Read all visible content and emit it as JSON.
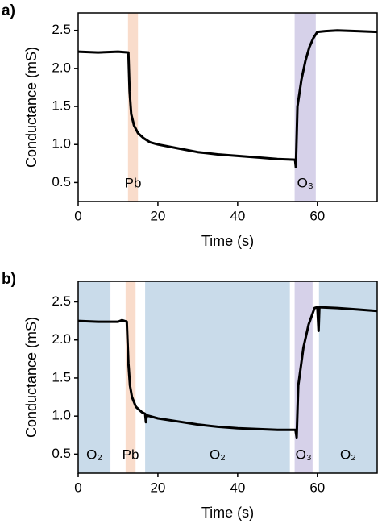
{
  "chart_data": [
    {
      "type": "line",
      "panel": "a)",
      "xlabel": "Time (s)",
      "ylabel": "Conductance (mS)",
      "color": "#000000",
      "xlim": [
        0,
        75
      ],
      "ylim": [
        0.25,
        2.73
      ],
      "xticks": [
        0,
        20,
        40,
        60
      ],
      "yticks": [
        0.5,
        {
          "value": 1,
          "label": "1.0"
        },
        1.5,
        {
          "value": 2,
          "label": "2.0"
        },
        2.5
      ],
      "regions": [
        {
          "label": "Pb",
          "start": 12.5,
          "end": 15,
          "color": "#f9dccb"
        },
        {
          "label": "O₃",
          "start": 54.3,
          "end": 59.6,
          "color": "#d6d1e9"
        }
      ],
      "x": [
        0,
        5,
        10,
        12.6,
        12.9,
        13.3,
        14,
        15,
        16.5,
        18,
        20,
        25,
        30,
        35,
        40,
        45,
        50,
        54.4,
        54.6,
        55,
        56,
        57,
        58,
        59,
        60,
        62,
        65,
        70,
        75
      ],
      "values": [
        2.22,
        2.21,
        2.22,
        2.21,
        1.7,
        1.4,
        1.25,
        1.15,
        1.08,
        1.03,
        1.0,
        0.95,
        0.9,
        0.87,
        0.85,
        0.83,
        0.81,
        0.8,
        0.7,
        1.5,
        1.85,
        2.1,
        2.28,
        2.4,
        2.48,
        2.49,
        2.5,
        2.49,
        2.48
      ]
    },
    {
      "type": "line",
      "panel": "b)",
      "xlabel": "Time (s)",
      "ylabel": "Conductance (mS)",
      "color": "#000000",
      "xlim": [
        0,
        75
      ],
      "ylim": [
        0.25,
        2.77
      ],
      "xticks": [
        0,
        20,
        40,
        60
      ],
      "yticks": [
        0.5,
        {
          "value": 1,
          "label": "1.0"
        },
        1.5,
        {
          "value": 2,
          "label": "2.0"
        },
        2.5
      ],
      "regions": [
        {
          "label": "O₂",
          "start": 0,
          "end": 8.1,
          "color": "#c9dbea"
        },
        {
          "label": "Pb",
          "start": 11.9,
          "end": 14.4,
          "color": "#f9dccb"
        },
        {
          "label": "O₂",
          "start": 16.8,
          "end": 53.1,
          "color": "#c9dbea"
        },
        {
          "label": "O₃",
          "start": 54.3,
          "end": 58.8,
          "color": "#d6d1e9"
        },
        {
          "label": "O₂",
          "start": 60.4,
          "end": 75,
          "color": "#c9dbea"
        }
      ],
      "x": [
        0,
        5,
        10,
        11,
        12.2,
        12.6,
        13,
        13.5,
        14.5,
        16,
        16.8,
        17,
        17.2,
        20,
        25,
        30,
        35,
        40,
        45,
        50,
        54.5,
        54.8,
        55.2,
        56.5,
        57.8,
        59.3,
        60,
        60.3,
        60.5,
        65,
        70,
        75
      ],
      "values": [
        2.25,
        2.24,
        2.24,
        2.26,
        2.24,
        1.7,
        1.4,
        1.25,
        1.12,
        1.05,
        1.03,
        0.92,
        1.01,
        0.97,
        0.93,
        0.89,
        0.86,
        0.84,
        0.83,
        0.82,
        0.82,
        0.72,
        1.4,
        1.9,
        2.2,
        2.42,
        2.43,
        2.12,
        2.43,
        2.42,
        2.4,
        2.38
      ]
    }
  ]
}
